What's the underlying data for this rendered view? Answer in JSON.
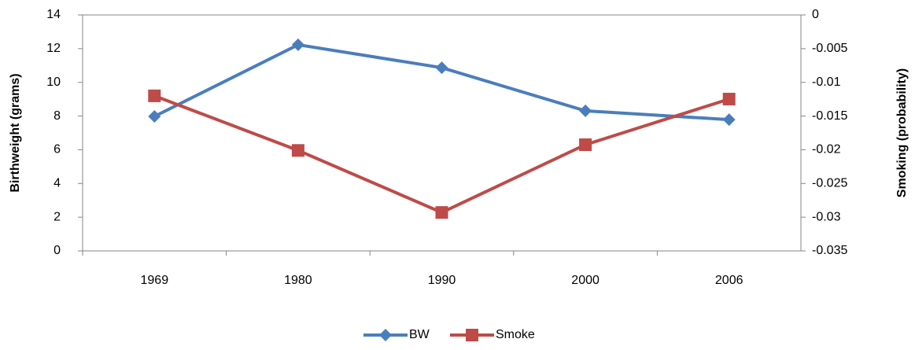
{
  "chart_data": {
    "type": "line",
    "categories": [
      "1969",
      "1980",
      "1990",
      "2000",
      "2006"
    ],
    "series": [
      {
        "name": "BW",
        "color": "#4a7ebb",
        "marker": "diamond",
        "values": [
          7.98,
          12.23,
          10.87,
          8.31,
          7.79
        ]
      },
      {
        "name": "Smoke",
        "color": "#be4b48",
        "marker": "square",
        "axis": "y2",
        "values": [
          -0.012,
          -0.0201,
          -0.0293,
          -0.01925,
          -0.01248
        ]
      }
    ],
    "ylabel": "Birthweight (grams)",
    "y2label": "Smoking (probability)",
    "ylim": [
      0,
      14
    ],
    "yticks": [
      0,
      2,
      4,
      6,
      8,
      10,
      12,
      14
    ],
    "y2lim": [
      -0.035,
      0
    ],
    "y2ticks": [
      0,
      -0.005,
      -0.01,
      -0.015,
      -0.02,
      -0.025,
      -0.03,
      -0.035
    ],
    "grid": false,
    "legend": "bottom"
  }
}
